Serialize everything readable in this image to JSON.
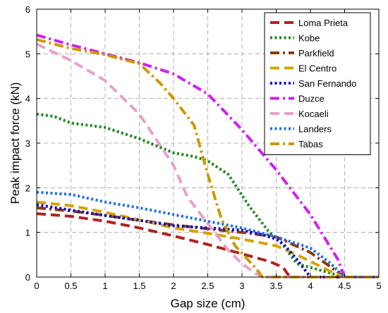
{
  "chart_data": {
    "type": "line",
    "title": "",
    "xlabel": "Gap size (cm)",
    "ylabel": "Peak impact force (kN)",
    "xlim": [
      0,
      5
    ],
    "ylim": [
      0,
      6
    ],
    "xticks": [
      "0",
      "0.5",
      "1",
      "1.5",
      "2",
      "2.5",
      "3",
      "3.5",
      "4",
      "4.5",
      "5"
    ],
    "yticks": [
      "0",
      "1",
      "2",
      "3",
      "4",
      "5",
      "6"
    ],
    "grid": true,
    "legend_position": "top-right",
    "series": [
      {
        "name": "Loma Prieta",
        "color": "#b22222",
        "dash": "dash",
        "x": [
          0,
          0.5,
          1,
          1.5,
          2,
          2.5,
          3,
          3.4,
          3.6,
          3.7,
          5
        ],
        "y": [
          1.42,
          1.36,
          1.25,
          1.1,
          0.92,
          0.73,
          0.52,
          0.35,
          0.22,
          0,
          0
        ]
      },
      {
        "name": "Kobe",
        "color": "#1a8a1a",
        "dash": "dot",
        "x": [
          0,
          0.25,
          0.5,
          1,
          1.5,
          2,
          2.3,
          2.5,
          2.7,
          2.8,
          3.1,
          3.4,
          3.6,
          3.8,
          4.5,
          5
        ],
        "y": [
          3.65,
          3.6,
          3.45,
          3.35,
          3.1,
          2.78,
          2.7,
          2.6,
          2.4,
          2.3,
          1.6,
          1.0,
          0.72,
          0.3,
          0,
          0
        ]
      },
      {
        "name": "Parkfield",
        "color": "#8b3a0f",
        "dash": "dashdot",
        "x": [
          0,
          0.5,
          1,
          1.5,
          2,
          2.5,
          3,
          3.5,
          4,
          4.5,
          5
        ],
        "y": [
          1.55,
          1.48,
          1.38,
          1.27,
          1.17,
          1.08,
          1.0,
          0.9,
          0.55,
          0,
          0
        ]
      },
      {
        "name": "El Centro",
        "color": "#d4a300",
        "dash": "dash",
        "x": [
          0,
          0.5,
          1,
          1.5,
          2,
          2.5,
          3,
          3.5,
          3.8,
          4,
          4.3,
          4.5,
          5
        ],
        "y": [
          1.68,
          1.6,
          1.45,
          1.28,
          1.1,
          0.98,
          0.85,
          0.7,
          0.5,
          0.35,
          0.12,
          0,
          0
        ]
      },
      {
        "name": "San Fernando",
        "color": "#0a0ad8",
        "dash": "dot",
        "x": [
          0,
          0.5,
          1,
          1.5,
          2,
          2.5,
          3,
          3.3,
          3.5,
          3.6,
          3.8,
          4,
          5
        ],
        "y": [
          1.62,
          1.5,
          1.38,
          1.27,
          1.15,
          1.1,
          1.05,
          0.95,
          0.85,
          0.75,
          0.4,
          0,
          0
        ]
      },
      {
        "name": "Duzce",
        "color": "#cc22ee",
        "dash": "dashdot",
        "x": [
          0,
          0.5,
          1,
          1.5,
          2,
          2.5,
          3,
          3.5,
          4,
          4.4,
          4.5,
          5
        ],
        "y": [
          5.42,
          5.2,
          5.0,
          4.8,
          4.55,
          4.1,
          3.3,
          2.4,
          1.4,
          0.4,
          0,
          0
        ]
      },
      {
        "name": "Kocaeli",
        "color": "#e8a0cc",
        "dash": "dash",
        "x": [
          0,
          0.5,
          1,
          1.5,
          2,
          2.2,
          2.5,
          2.8,
          3.0,
          3.2,
          3.3,
          5
        ],
        "y": [
          5.22,
          4.85,
          4.4,
          3.65,
          2.5,
          1.8,
          1.2,
          0.6,
          0.3,
          0.08,
          0,
          0
        ]
      },
      {
        "name": "Landers",
        "color": "#1f6fe0",
        "dash": "dot",
        "x": [
          0,
          0.5,
          1,
          1.5,
          2,
          2.5,
          3,
          3.5,
          4,
          4.3,
          4.5,
          5
        ],
        "y": [
          1.9,
          1.85,
          1.68,
          1.55,
          1.4,
          1.25,
          1.1,
          0.9,
          0.65,
          0.3,
          0,
          0
        ]
      },
      {
        "name": "Tabas",
        "color": "#cc9900",
        "dash": "dashdot",
        "x": [
          0,
          0.5,
          1,
          1.5,
          1.8,
          2,
          2.3,
          2.5,
          2.7,
          2.9,
          3.2,
          3.3,
          5
        ],
        "y": [
          5.32,
          5.12,
          4.98,
          4.78,
          4.35,
          4.0,
          3.4,
          2.3,
          1.3,
          0.7,
          0.2,
          0,
          0
        ]
      }
    ]
  }
}
